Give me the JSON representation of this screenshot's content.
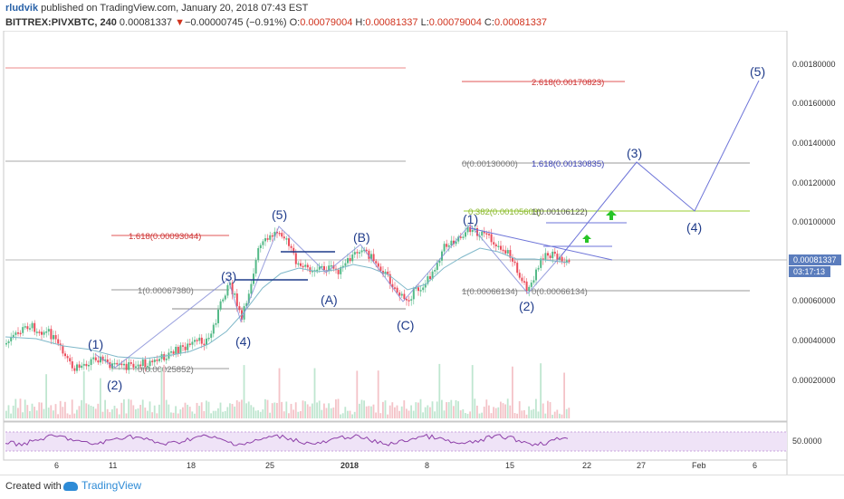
{
  "header": {
    "author": "rludvik",
    "published_text": " published on TradingView.com, January 20, 2018 07:43 EST",
    "symbol": "BITTREX:PIVXBTC, 240",
    "last": " 0.00081337 ",
    "change": "−0.00000745 (−0.91%)",
    "o_label": " O:",
    "o_value": "0.00079004",
    "h_label": " H:",
    "h_value": "0.00081337",
    "l_label": " L:",
    "l_value": "0.00079004",
    "c_label": " C:",
    "c_value": "0.00081337"
  },
  "price_axis": {
    "ticks": [
      "0.00180000",
      "0.00160000",
      "0.00140000",
      "0.00120000",
      "0.00100000",
      "0.00080000",
      "0.00060000",
      "0.00040000",
      "0.00020000"
    ],
    "last_price_tag": "0.00081337",
    "countdown_tag": "03:17:13"
  },
  "rsi_axis": {
    "tick": "50.0000"
  },
  "time_axis": {
    "ticks": [
      "6",
      "11",
      "18",
      "25",
      "2018",
      "8",
      "15",
      "22",
      "27",
      "Feb",
      "6"
    ]
  },
  "fib_labels": {
    "f2618": "2.618(0.00170823)",
    "f0_130": "0(0.00130000)",
    "f1618_130": "1.618(0.00130835)",
    "f0382": "0.382(0.00105603)",
    "f1_106": "1(0.00106122)",
    "f1618_093": "1.618(0.00093044)",
    "f1_067": "1(0.00067380)",
    "f1_066": "1(0.00066134)",
    "f0_066": "0(0.00066134)",
    "f0_025": "0(0.00025852)"
  },
  "wave_labels": {
    "w1a": "(1)",
    "w2a": "(2)",
    "w3a": "(3)",
    "w4a": "(4)",
    "w5a": "(5)",
    "wA": "(A)",
    "wB": "(B)",
    "wC": "(C)",
    "w1b": "(1)",
    "w2b": "(2)",
    "w3b": "(3)",
    "w4b": "(4)",
    "w5b": "(5)"
  },
  "colors": {
    "bull": "#53b987",
    "bear": "#eb4d5c",
    "wave_blue": "#1f3b8a",
    "proj_line": "#6d74d8",
    "fib_gray": "#8a8a8a",
    "fib_red": "#cc3333",
    "fib_green": "#9acd32",
    "rsi": "#8d3fa8",
    "arrow_green": "#27c427"
  },
  "footer": {
    "created_with": "Created with",
    "brand": "TradingView"
  }
}
